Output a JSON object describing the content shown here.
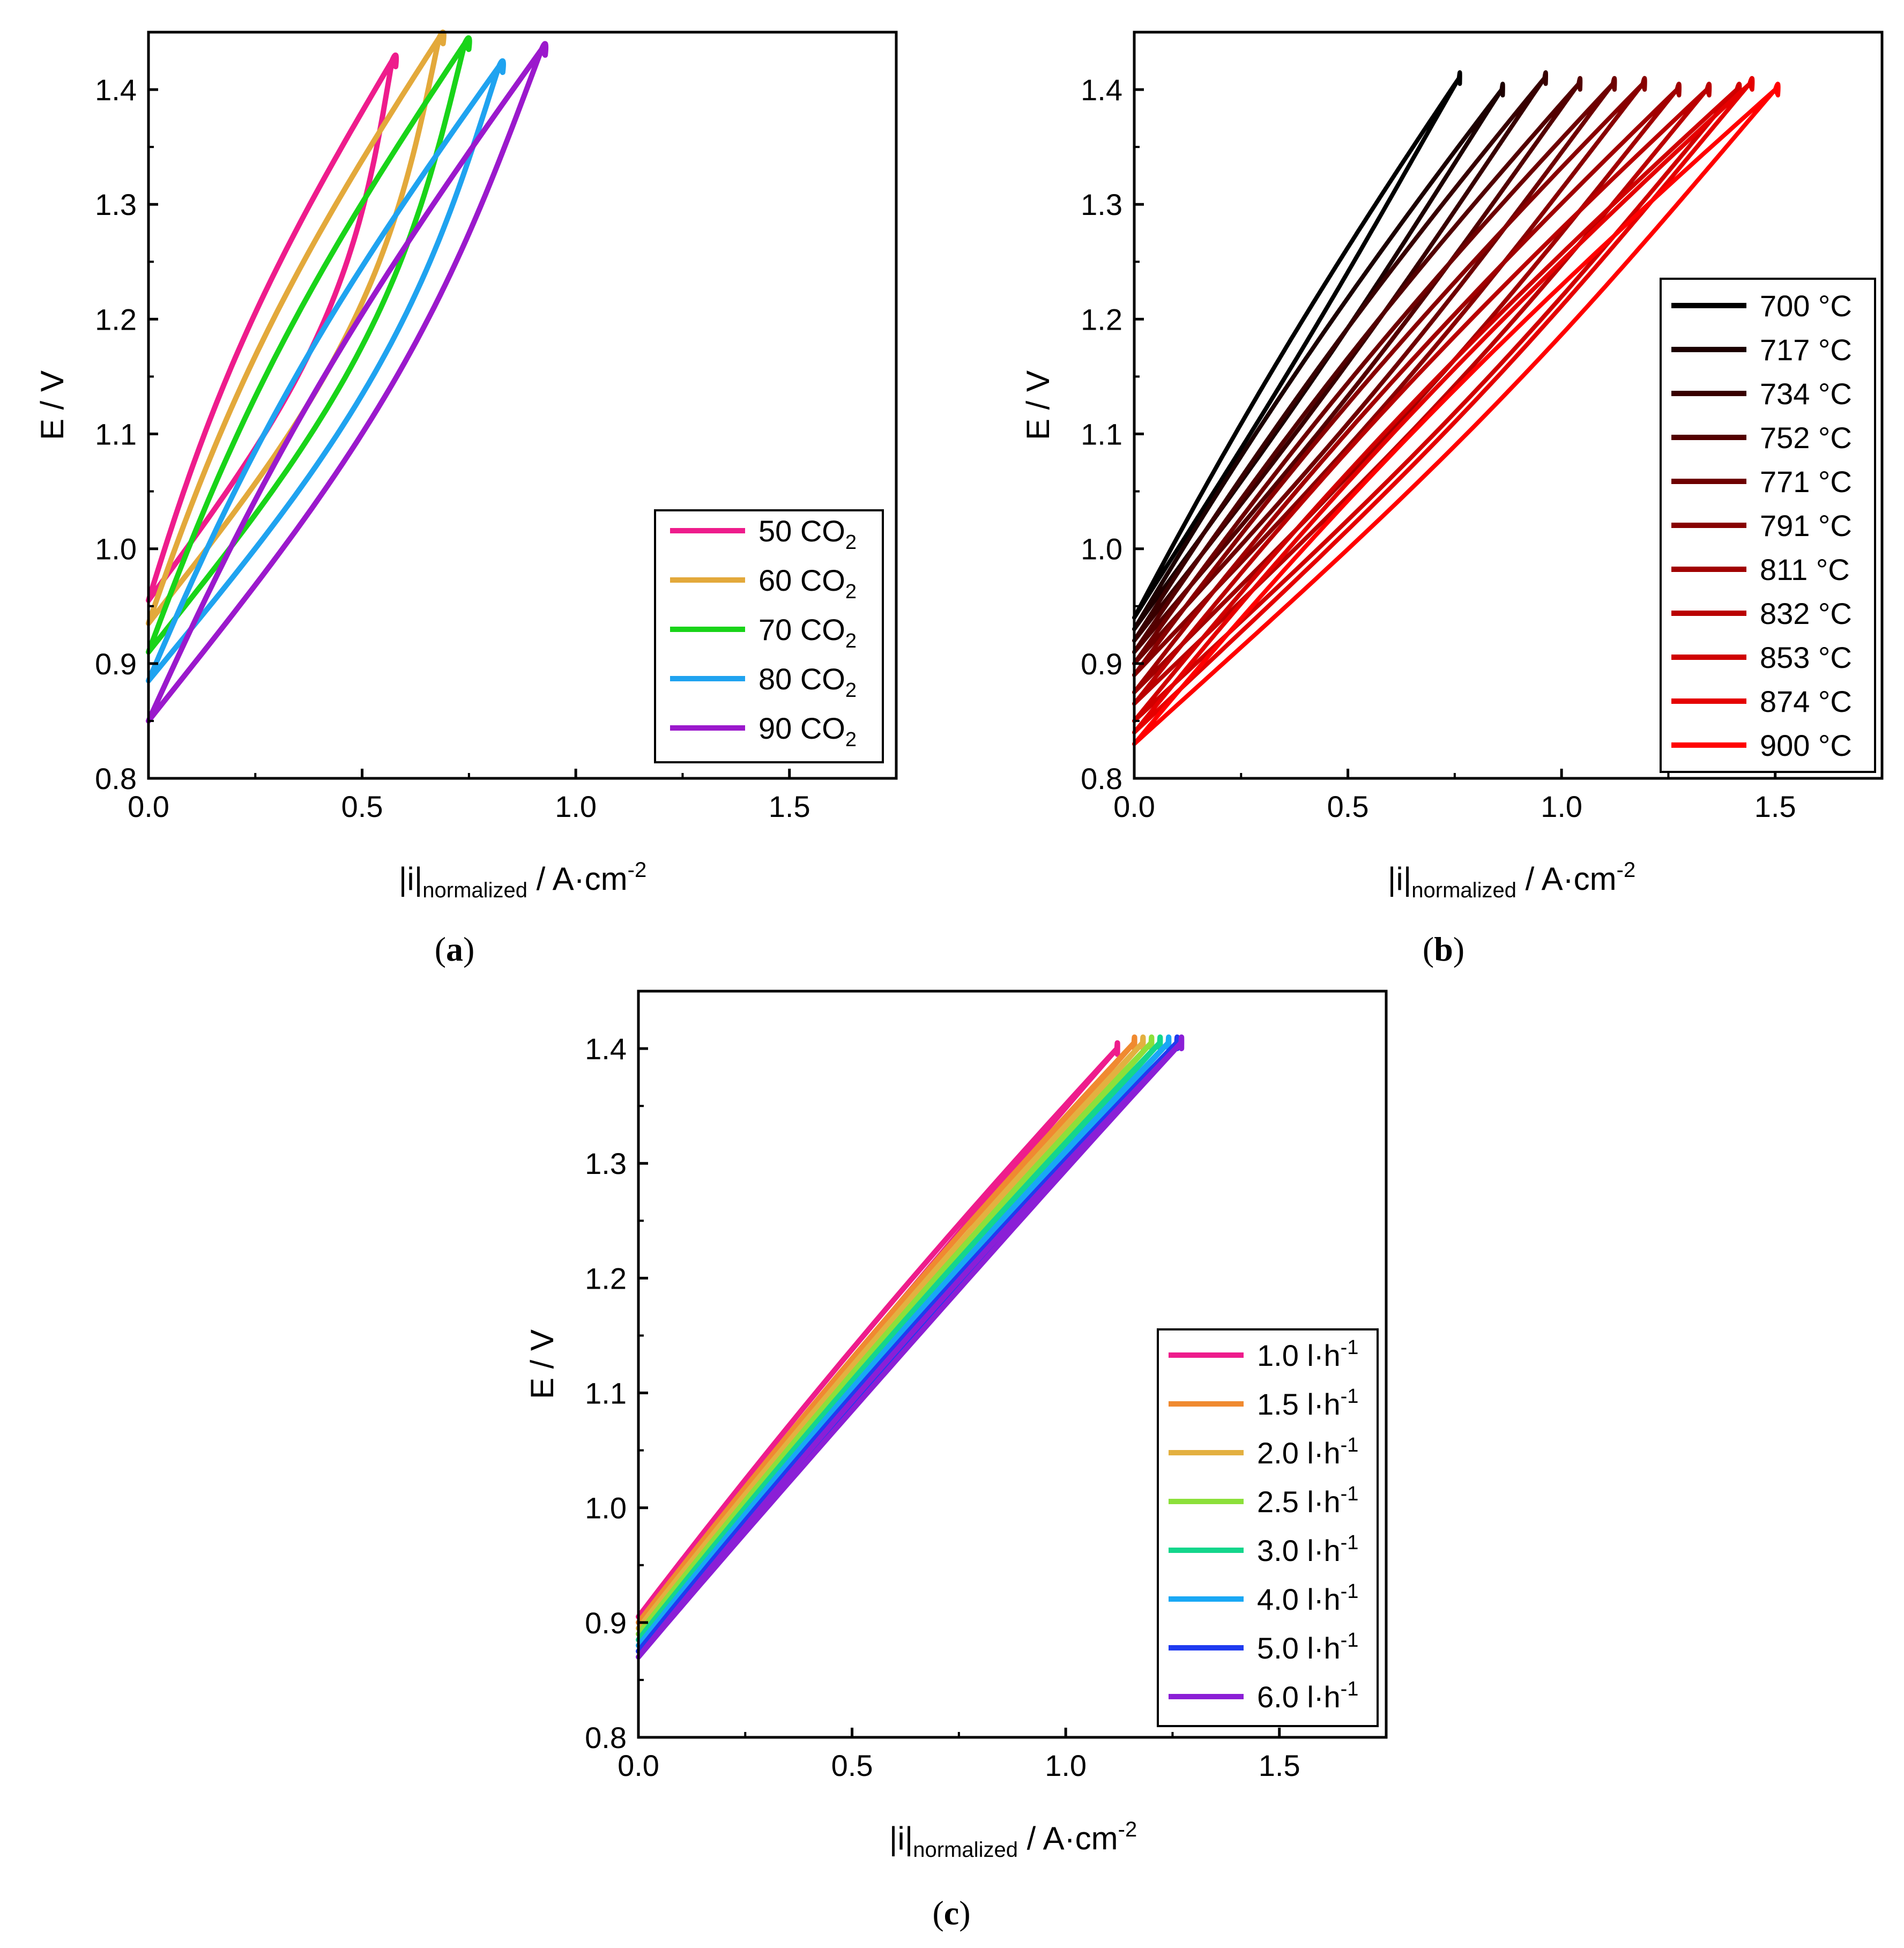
{
  "figure": {
    "panels": [
      {
        "id": "a",
        "caption_letter": "a"
      },
      {
        "id": "b",
        "caption_letter": "b"
      },
      {
        "id": "c",
        "caption_letter": "c"
      }
    ]
  },
  "chart_data": [
    {
      "id": "a",
      "type": "line",
      "description": "hysteresis loops (forward and backward sweep)",
      "ylabel": "E / V",
      "xlabel_main": "|i|",
      "xlabel_sub": "normalized",
      "xlabel_rest": " / A·cm",
      "xlabel_sup": "-2",
      "xlim": [
        0.0,
        1.75
      ],
      "ylim": [
        0.8,
        1.45
      ],
      "xticks": [
        "0.0",
        "0.5",
        "1.0",
        "1.5"
      ],
      "xtick_values": [
        0.0,
        0.5,
        1.0,
        1.5
      ],
      "yticks": [
        "0.8",
        "0.9",
        "1.0",
        "1.1",
        "1.2",
        "1.3",
        "1.4"
      ],
      "ytick_values": [
        0.8,
        0.9,
        1.0,
        1.1,
        1.2,
        1.3,
        1.4
      ],
      "legend_position": "bottom-right",
      "series": [
        {
          "name": "50 CO",
          "sub": "2",
          "color": "#EE1C8C",
          "E0": 0.955,
          "Ev": 1.425,
          "imax": 0.57,
          "width": 0.17
        },
        {
          "name": "60 CO",
          "sub": "2",
          "color": "#E3A93B",
          "E0": 0.935,
          "Ev": 1.445,
          "imax": 0.68,
          "width": 0.19
        },
        {
          "name": "70 CO",
          "sub": "2",
          "color": "#19D419",
          "E0": 0.91,
          "Ev": 1.44,
          "imax": 0.74,
          "width": 0.19
        },
        {
          "name": "80 CO",
          "sub": "2",
          "color": "#1FA3F0",
          "E0": 0.885,
          "Ev": 1.42,
          "imax": 0.82,
          "width": 0.18
        },
        {
          "name": "90 CO",
          "sub": "2",
          "color": "#9B19CC",
          "E0": 0.85,
          "Ev": 1.435,
          "imax": 0.92,
          "width": 0.17
        }
      ]
    },
    {
      "id": "b",
      "type": "line",
      "description": "hysteresis loops (forward and backward sweep)",
      "ylabel": "E / V",
      "xlabel_main": "|i|",
      "xlabel_sub": "normalized",
      "xlabel_rest": " / A·cm",
      "xlabel_sup": "-2",
      "xlim": [
        0.0,
        1.75
      ],
      "ylim": [
        0.8,
        1.45
      ],
      "xticks": [
        "0.0",
        "0.5",
        "1.0",
        "1.5"
      ],
      "xtick_values": [
        0.0,
        0.5,
        1.0,
        1.5
      ],
      "yticks": [
        "0.8",
        "0.9",
        "1.0",
        "1.1",
        "1.2",
        "1.3",
        "1.4"
      ],
      "ytick_values": [
        0.8,
        0.9,
        1.0,
        1.1,
        1.2,
        1.3,
        1.4
      ],
      "legend_position": "right",
      "series": [
        {
          "name": "700 °C",
          "color": "#000000",
          "E0": 0.94,
          "Ev": 1.41,
          "imax": 0.76,
          "width": 0.04
        },
        {
          "name": "717 °C",
          "color": "#1C0000",
          "E0": 0.93,
          "Ev": 1.4,
          "imax": 0.86,
          "width": 0.05
        },
        {
          "name": "734 °C",
          "color": "#380000",
          "E0": 0.92,
          "Ev": 1.41,
          "imax": 0.96,
          "width": 0.06
        },
        {
          "name": "752 °C",
          "color": "#530000",
          "E0": 0.91,
          "Ev": 1.405,
          "imax": 1.04,
          "width": 0.07
        },
        {
          "name": "771 °C",
          "color": "#6E0000",
          "E0": 0.9,
          "Ev": 1.405,
          "imax": 1.12,
          "width": 0.08
        },
        {
          "name": "791 °C",
          "color": "#880000",
          "E0": 0.89,
          "Ev": 1.405,
          "imax": 1.19,
          "width": 0.09
        },
        {
          "name": "811 °C",
          "color": "#A10000",
          "E0": 0.875,
          "Ev": 1.4,
          "imax": 1.27,
          "width": 0.1
        },
        {
          "name": "832 °C",
          "color": "#BA0000",
          "E0": 0.865,
          "Ev": 1.4,
          "imax": 1.34,
          "width": 0.11
        },
        {
          "name": "853 °C",
          "color": "#D00000",
          "E0": 0.85,
          "Ev": 1.4,
          "imax": 1.41,
          "width": 0.12
        },
        {
          "name": "874 °C",
          "color": "#E50000",
          "E0": 0.84,
          "Ev": 1.405,
          "imax": 1.44,
          "width": 0.12
        },
        {
          "name": "900 °C",
          "color": "#FF0000",
          "E0": 0.83,
          "Ev": 1.4,
          "imax": 1.5,
          "width": 0.13
        }
      ]
    },
    {
      "id": "c",
      "type": "line",
      "description": "hysteresis loops (forward and backward sweep)",
      "ylabel": "E / V",
      "xlabel_main": "|i|",
      "xlabel_sub": "normalized",
      "xlabel_rest": " / A·cm",
      "xlabel_sup": "-2",
      "xlim": [
        0.0,
        1.75
      ],
      "ylim": [
        0.8,
        1.45
      ],
      "xticks": [
        "0.0",
        "0.5",
        "1.0",
        "1.5"
      ],
      "xtick_values": [
        0.0,
        0.5,
        1.0,
        1.5
      ],
      "yticks": [
        "0.8",
        "0.9",
        "1.0",
        "1.1",
        "1.2",
        "1.3",
        "1.4"
      ],
      "ytick_values": [
        0.8,
        0.9,
        1.0,
        1.1,
        1.2,
        1.3,
        1.4
      ],
      "legend_position": "bottom-right",
      "series": [
        {
          "name": "1.0 l·h",
          "sup": "-1",
          "color": "#EE1C8C",
          "E0": 0.905,
          "Ev": 1.4,
          "imax": 1.12,
          "width": 0.02
        },
        {
          "name": "1.5 l·h",
          "sup": "-1",
          "color": "#F08A30",
          "E0": 0.9,
          "Ev": 1.405,
          "imax": 1.16,
          "width": 0.02
        },
        {
          "name": "2.0 l·h",
          "sup": "-1",
          "color": "#E3B040",
          "E0": 0.895,
          "Ev": 1.405,
          "imax": 1.18,
          "width": 0.02
        },
        {
          "name": "2.5 l·h",
          "sup": "-1",
          "color": "#8CE03A",
          "E0": 0.89,
          "Ev": 1.405,
          "imax": 1.2,
          "width": 0.02
        },
        {
          "name": "3.0 l·h",
          "sup": "-1",
          "color": "#14D68C",
          "E0": 0.885,
          "Ev": 1.405,
          "imax": 1.22,
          "width": 0.02
        },
        {
          "name": "4.0 l·h",
          "sup": "-1",
          "color": "#19A8F5",
          "E0": 0.88,
          "Ev": 1.405,
          "imax": 1.24,
          "width": 0.02
        },
        {
          "name": "5.0 l·h",
          "sup": "-1",
          "color": "#1F3BF0",
          "E0": 0.875,
          "Ev": 1.405,
          "imax": 1.26,
          "width": 0.02
        },
        {
          "name": "6.0 l·h",
          "sup": "-1",
          "color": "#8B1FD6",
          "E0": 0.87,
          "Ev": 1.405,
          "imax": 1.27,
          "width": 0.02
        }
      ]
    }
  ]
}
